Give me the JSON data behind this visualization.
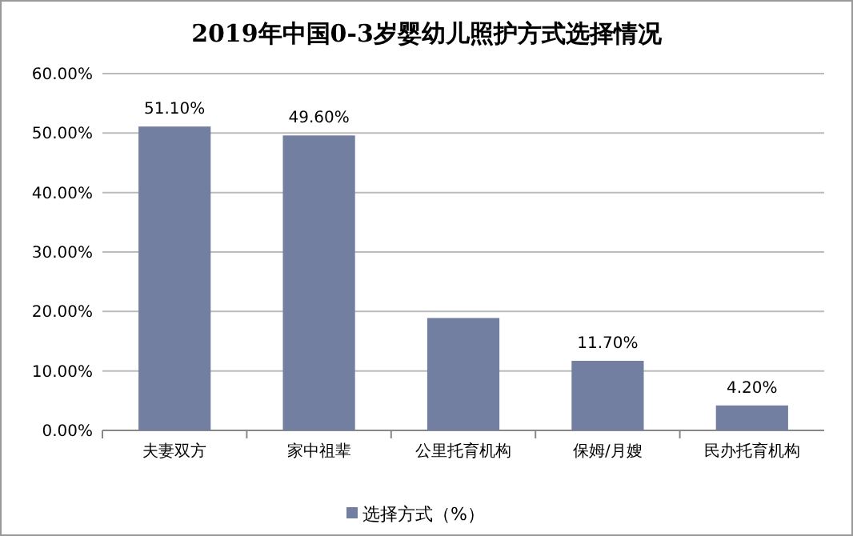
{
  "chart_data": {
    "type": "bar",
    "title": "2019年中国0-3岁婴幼儿照护方式选择情况",
    "categories": [
      "夫妻双方",
      "家中祖辈",
      "公里托育机构",
      "保姆/月嫂",
      "民办托育机构"
    ],
    "series": [
      {
        "name": "选择方式（%）",
        "color": "#737fa1",
        "values": [
          51.1,
          49.6,
          18.9,
          11.7,
          4.2
        ],
        "value_labels": [
          "51.10%",
          "49.60%",
          null,
          "11.70%",
          "4.20%"
        ]
      }
    ],
    "ylim": [
      0,
      60
    ],
    "yticks": [
      {
        "value": 0,
        "label": "0.00%"
      },
      {
        "value": 10,
        "label": "10.00%"
      },
      {
        "value": 20,
        "label": "20.00%"
      },
      {
        "value": 30,
        "label": "30.00%"
      },
      {
        "value": 40,
        "label": "40.00%"
      },
      {
        "value": 50,
        "label": "50.00%"
      },
      {
        "value": 60,
        "label": "60.00%"
      }
    ],
    "grid": "y",
    "legend": "bottom"
  }
}
